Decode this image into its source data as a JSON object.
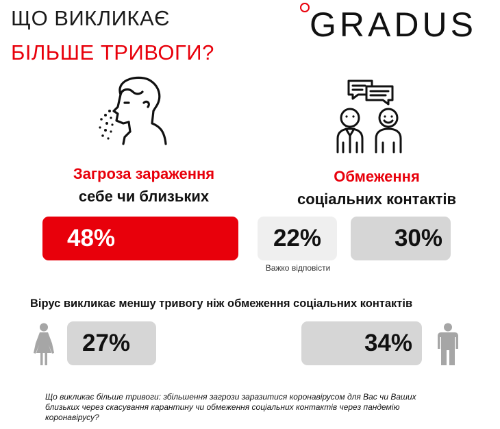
{
  "header": {
    "title_line1": "ЩО ВИКЛИКАЄ",
    "title_line2": "БІЛЬШЕ ТРИВОГИ?",
    "logo": "GRADUS",
    "accent_color": "#e8000b"
  },
  "left_block": {
    "icon": "sneezing-person-icon",
    "caption_red": "Загроза зараження",
    "caption_black": "себе чи близьких"
  },
  "right_block": {
    "icon": "people-chat-icon",
    "caption_red": "Обмеження",
    "caption_black": "соціальних контактів"
  },
  "chart_data": [
    {
      "type": "bar",
      "categories": [
        "Загроза зараження себе чи близьких",
        "Важко відповісти",
        "Обмеження соціальних контактів"
      ],
      "values": [
        48,
        22,
        30
      ],
      "value_labels": [
        "48%",
        "22%",
        "30%"
      ],
      "unit": "%",
      "colors": [
        "#e8000b",
        "#efefef",
        "#d6d6d6"
      ],
      "note_label": "Важко відповісти"
    },
    {
      "type": "bar",
      "title": "Вірус викликає меншу тривогу ніж обмеження соціальних контактів",
      "categories": [
        "female",
        "male"
      ],
      "values": [
        27,
        34
      ],
      "value_labels": [
        "27%",
        "34%"
      ],
      "unit": "%",
      "colors": [
        "#d6d6d6",
        "#d6d6d6"
      ],
      "icons": [
        "female-figure-icon",
        "male-figure-icon"
      ]
    }
  ],
  "footnote": "Що викликає більше тривоги: збільшення загрози заразитися коронавірусом для Вас чи Ваших близьких через скасування карантину чи обмеження соціальних контактів через пандемію коронавірусу?"
}
